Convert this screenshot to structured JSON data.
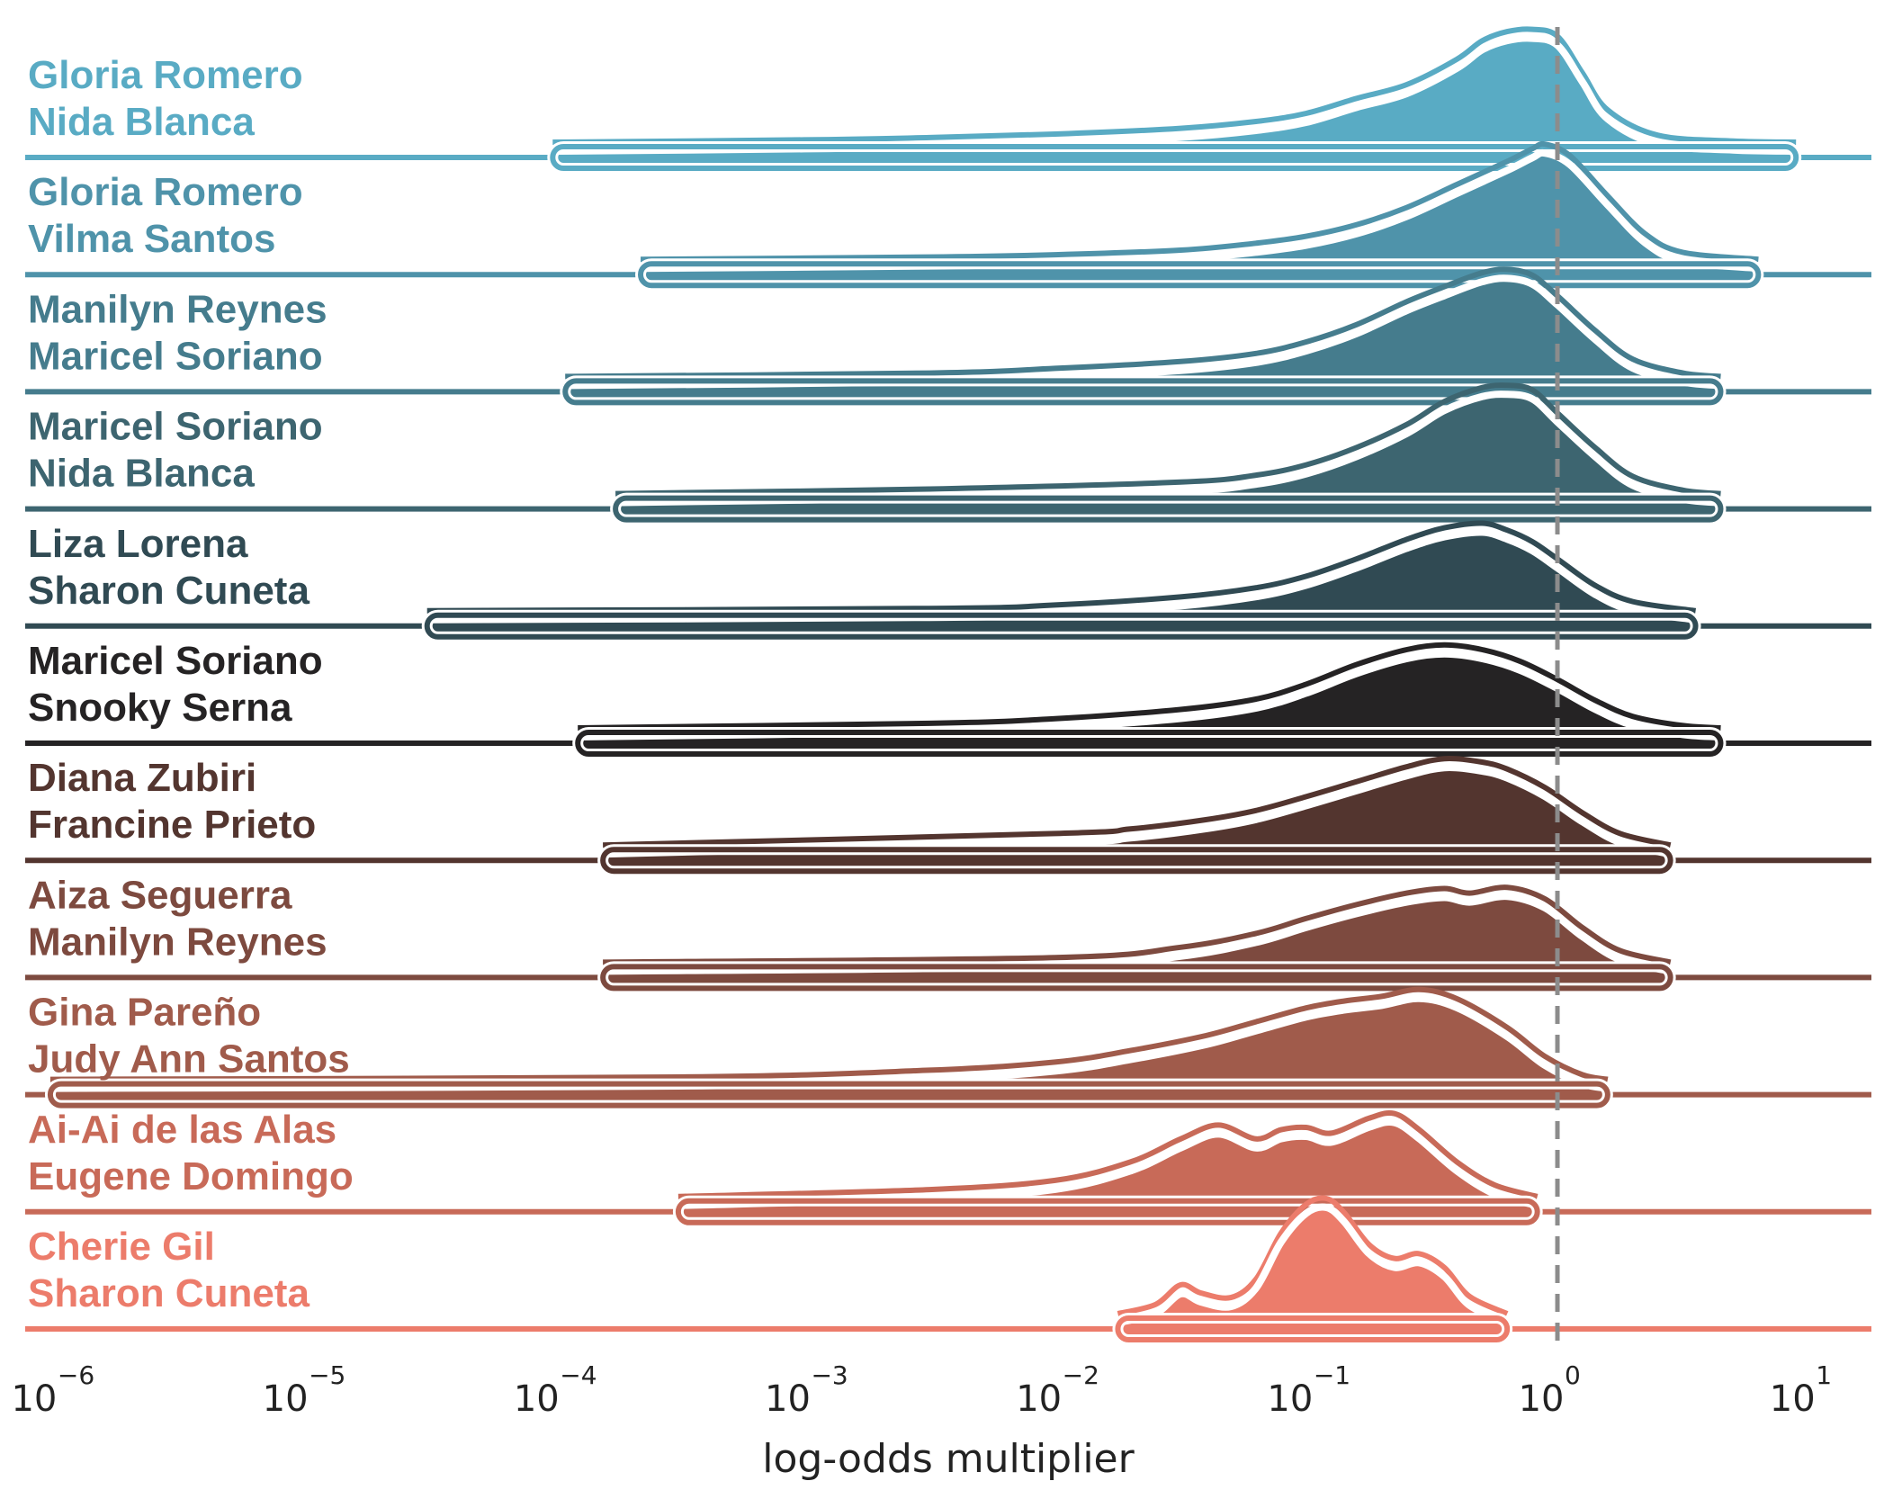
{
  "chart_data": {
    "type": "ridgeline",
    "xscale": "log",
    "xlim_log10": [
      -6.1,
      1.25
    ],
    "xlabel": "log-odds multiplier",
    "xticks": [
      {
        "base": "10",
        "exp": "−6",
        "value": -6
      },
      {
        "base": "10",
        "exp": "−5",
        "value": -5
      },
      {
        "base": "10",
        "exp": "−4",
        "value": -4
      },
      {
        "base": "10",
        "exp": "−3",
        "value": -3
      },
      {
        "base": "10",
        "exp": "−2",
        "value": -2
      },
      {
        "base": "10",
        "exp": "−1",
        "value": -1
      },
      {
        "base": "10",
        "exp": "0",
        "value": 0
      },
      {
        "base": "10",
        "exp": "1",
        "value": 1
      }
    ],
    "reference_line_log10": 0,
    "grid": false,
    "series": [
      {
        "line1": "Gloria Romero",
        "line2": "Nida Blanca",
        "color": "#59abc4",
        "range_log10": [
          -4.0,
          0.95
        ],
        "density": [
          [
            -4.0,
            0.0
          ],
          [
            -3.0,
            0.02
          ],
          [
            -2.5,
            0.04
          ],
          [
            -2.0,
            0.07
          ],
          [
            -1.5,
            0.12
          ],
          [
            -1.2,
            0.18
          ],
          [
            -1.0,
            0.25
          ],
          [
            -0.8,
            0.38
          ],
          [
            -0.6,
            0.5
          ],
          [
            -0.4,
            0.72
          ],
          [
            -0.3,
            0.88
          ],
          [
            -0.2,
            0.96
          ],
          [
            -0.1,
            0.98
          ],
          [
            0.0,
            0.92
          ],
          [
            0.1,
            0.6
          ],
          [
            0.2,
            0.28
          ],
          [
            0.4,
            0.06
          ],
          [
            0.7,
            0.01
          ],
          [
            0.95,
            0.0
          ]
        ]
      },
      {
        "line1": "Gloria Romero",
        "line2": "Vilma Santos",
        "color": "#4f93aa",
        "range_log10": [
          -3.65,
          0.8
        ],
        "density": [
          [
            -3.65,
            0.0
          ],
          [
            -2.5,
            0.02
          ],
          [
            -2.0,
            0.04
          ],
          [
            -1.5,
            0.08
          ],
          [
            -1.2,
            0.14
          ],
          [
            -1.0,
            0.2
          ],
          [
            -0.8,
            0.3
          ],
          [
            -0.6,
            0.45
          ],
          [
            -0.4,
            0.65
          ],
          [
            -0.2,
            0.85
          ],
          [
            -0.1,
            0.96
          ],
          [
            -0.05,
            1.0
          ],
          [
            0.05,
            0.9
          ],
          [
            0.2,
            0.55
          ],
          [
            0.35,
            0.22
          ],
          [
            0.5,
            0.06
          ],
          [
            0.8,
            0.0
          ]
        ]
      },
      {
        "line1": "Manilyn Reynes",
        "line2": "Maricel Soriano",
        "color": "#457c8d",
        "range_log10": [
          -3.95,
          0.65
        ],
        "density": [
          [
            -3.95,
            0.0
          ],
          [
            -2.5,
            0.03
          ],
          [
            -2.0,
            0.07
          ],
          [
            -1.5,
            0.13
          ],
          [
            -1.2,
            0.2
          ],
          [
            -1.0,
            0.3
          ],
          [
            -0.8,
            0.45
          ],
          [
            -0.6,
            0.65
          ],
          [
            -0.45,
            0.78
          ],
          [
            -0.3,
            0.9
          ],
          [
            -0.2,
            0.93
          ],
          [
            -0.1,
            0.88
          ],
          [
            0.0,
            0.7
          ],
          [
            0.15,
            0.4
          ],
          [
            0.3,
            0.15
          ],
          [
            0.5,
            0.03
          ],
          [
            0.65,
            0.0
          ]
        ]
      },
      {
        "line1": "Maricel Soriano",
        "line2": "Nida Blanca",
        "color": "#3d6570",
        "range_log10": [
          -3.75,
          0.65
        ],
        "density": [
          [
            -3.75,
            0.0
          ],
          [
            -2.5,
            0.04
          ],
          [
            -1.5,
            0.1
          ],
          [
            -1.2,
            0.16
          ],
          [
            -1.0,
            0.25
          ],
          [
            -0.8,
            0.4
          ],
          [
            -0.6,
            0.6
          ],
          [
            -0.45,
            0.8
          ],
          [
            -0.3,
            0.92
          ],
          [
            -0.2,
            0.94
          ],
          [
            -0.1,
            0.9
          ],
          [
            0.0,
            0.7
          ],
          [
            0.15,
            0.4
          ],
          [
            0.3,
            0.15
          ],
          [
            0.5,
            0.03
          ],
          [
            0.65,
            0.0
          ]
        ]
      },
      {
        "line1": "Liza Lorena",
        "line2": "Sharon Cuneta",
        "color": "#304a53",
        "range_log10": [
          -4.5,
          0.55
        ],
        "density": [
          [
            -4.5,
            0.0
          ],
          [
            -2.5,
            0.02
          ],
          [
            -2.0,
            0.05
          ],
          [
            -1.5,
            0.12
          ],
          [
            -1.2,
            0.2
          ],
          [
            -1.0,
            0.3
          ],
          [
            -0.8,
            0.45
          ],
          [
            -0.6,
            0.62
          ],
          [
            -0.45,
            0.72
          ],
          [
            -0.3,
            0.76
          ],
          [
            -0.2,
            0.7
          ],
          [
            -0.1,
            0.6
          ],
          [
            0.0,
            0.45
          ],
          [
            0.15,
            0.22
          ],
          [
            0.3,
            0.08
          ],
          [
            0.55,
            0.0
          ]
        ]
      },
      {
        "line1": "Maricel Soriano",
        "line2": "Snooky Serna",
        "color": "#252324",
        "range_log10": [
          -3.9,
          0.65
        ],
        "density": [
          [
            -3.9,
            0.0
          ],
          [
            -2.5,
            0.04
          ],
          [
            -2.0,
            0.08
          ],
          [
            -1.5,
            0.16
          ],
          [
            -1.2,
            0.25
          ],
          [
            -1.0,
            0.38
          ],
          [
            -0.8,
            0.55
          ],
          [
            -0.6,
            0.68
          ],
          [
            -0.45,
            0.72
          ],
          [
            -0.3,
            0.68
          ],
          [
            -0.15,
            0.58
          ],
          [
            0.0,
            0.42
          ],
          [
            0.15,
            0.24
          ],
          [
            0.3,
            0.1
          ],
          [
            0.5,
            0.02
          ],
          [
            0.65,
            0.0
          ]
        ]
      },
      {
        "line1": "Diana Zubiri",
        "line2": "Francine Prieto",
        "color": "#53352f",
        "range_log10": [
          -3.8,
          0.45
        ],
        "density": [
          [
            -3.8,
            0.0
          ],
          [
            -2.0,
            0.1
          ],
          [
            -1.7,
            0.14
          ],
          [
            -1.4,
            0.22
          ],
          [
            -1.2,
            0.3
          ],
          [
            -1.0,
            0.42
          ],
          [
            -0.8,
            0.55
          ],
          [
            -0.6,
            0.68
          ],
          [
            -0.45,
            0.75
          ],
          [
            -0.3,
            0.72
          ],
          [
            -0.2,
            0.66
          ],
          [
            -0.05,
            0.5
          ],
          [
            0.1,
            0.28
          ],
          [
            0.25,
            0.1
          ],
          [
            0.45,
            0.0
          ]
        ]
      },
      {
        "line1": "Aiza Seguerra",
        "line2": "Manilyn Reynes",
        "color": "#7d4a3f",
        "range_log10": [
          -3.8,
          0.45
        ],
        "density": [
          [
            -3.8,
            0.0
          ],
          [
            -2.0,
            0.04
          ],
          [
            -1.5,
            0.13
          ],
          [
            -1.2,
            0.25
          ],
          [
            -1.0,
            0.38
          ],
          [
            -0.8,
            0.5
          ],
          [
            -0.6,
            0.6
          ],
          [
            -0.45,
            0.64
          ],
          [
            -0.35,
            0.6
          ],
          [
            -0.2,
            0.65
          ],
          [
            -0.05,
            0.55
          ],
          [
            0.1,
            0.3
          ],
          [
            0.25,
            0.1
          ],
          [
            0.45,
            0.0
          ]
        ]
      },
      {
        "line1": "Gina Pareño",
        "line2": "Judy Ann Santos",
        "color": "#a05b4b",
        "range_log10": [
          -6.0,
          0.2
        ],
        "density": [
          [
            -6.0,
            0.0
          ],
          [
            -3.5,
            0.02
          ],
          [
            -2.5,
            0.08
          ],
          [
            -2.0,
            0.15
          ],
          [
            -1.7,
            0.25
          ],
          [
            -1.4,
            0.38
          ],
          [
            -1.2,
            0.5
          ],
          [
            -1.0,
            0.62
          ],
          [
            -0.85,
            0.68
          ],
          [
            -0.7,
            0.72
          ],
          [
            -0.55,
            0.78
          ],
          [
            -0.4,
            0.7
          ],
          [
            -0.2,
            0.45
          ],
          [
            -0.05,
            0.2
          ],
          [
            0.1,
            0.04
          ],
          [
            0.2,
            0.0
          ]
        ]
      },
      {
        "line1": "Ai-Ai de las Alas",
        "line2": "Eugene Domingo",
        "color": "#c86a58",
        "range_log10": [
          -3.5,
          -0.08
        ],
        "density": [
          [
            -3.5,
            0.0
          ],
          [
            -2.5,
            0.06
          ],
          [
            -2.0,
            0.14
          ],
          [
            -1.7,
            0.3
          ],
          [
            -1.5,
            0.5
          ],
          [
            -1.35,
            0.62
          ],
          [
            -1.2,
            0.5
          ],
          [
            -1.1,
            0.58
          ],
          [
            -1.0,
            0.6
          ],
          [
            -0.9,
            0.55
          ],
          [
            -0.75,
            0.68
          ],
          [
            -0.65,
            0.72
          ],
          [
            -0.55,
            0.58
          ],
          [
            -0.4,
            0.3
          ],
          [
            -0.25,
            0.1
          ],
          [
            -0.08,
            0.0
          ]
        ]
      },
      {
        "line1": "Cherie Gil",
        "line2": "Sharon Cuneta",
        "color": "#ec7c6b",
        "range_log10": [
          -1.75,
          -0.2
        ],
        "density": [
          [
            -1.75,
            0.0
          ],
          [
            -1.6,
            0.08
          ],
          [
            -1.5,
            0.25
          ],
          [
            -1.42,
            0.18
          ],
          [
            -1.3,
            0.14
          ],
          [
            -1.2,
            0.3
          ],
          [
            -1.1,
            0.7
          ],
          [
            -1.0,
            0.95
          ],
          [
            -0.92,
            1.0
          ],
          [
            -0.85,
            0.88
          ],
          [
            -0.75,
            0.6
          ],
          [
            -0.65,
            0.48
          ],
          [
            -0.55,
            0.52
          ],
          [
            -0.45,
            0.4
          ],
          [
            -0.35,
            0.15
          ],
          [
            -0.2,
            0.0
          ]
        ]
      }
    ]
  }
}
